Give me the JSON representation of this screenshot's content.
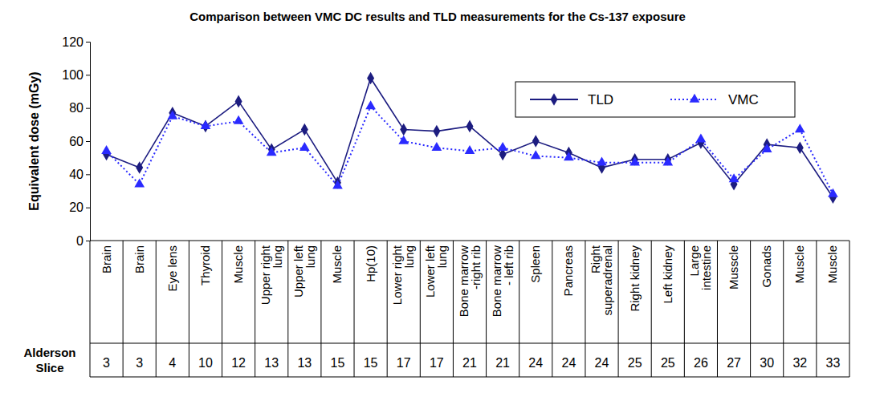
{
  "chart_data": {
    "type": "line",
    "title": "Comparison between VMC DC results and TLD measurements for the Cs-137 exposure",
    "y_label": "Equivalent dose (mGy)",
    "categories": [
      "Brain",
      "Brain",
      "Eye lens",
      "Thyroid",
      "Muscle",
      "Upper right lung",
      "Upper left lung",
      "Muscle",
      "Hp(10)",
      "Lower right lung",
      "Lower left lung",
      "Bone marrow -right rib",
      "Bone marrow - left rib",
      "Spleen",
      "Pancreas",
      "Right superadrenal",
      "Right kidney",
      "Left kidney",
      "Large intestine",
      "Musscle",
      "Gonads",
      "Muscle",
      "Muscle"
    ],
    "series": [
      {
        "name": "TLD",
        "color": "#1c1c80",
        "marker": "diamond",
        "line_style": "solid",
        "values": [
          52,
          44,
          77,
          69,
          84,
          55,
          67,
          35,
          98,
          67,
          66,
          69,
          52,
          60,
          53,
          44,
          49,
          49,
          59,
          34,
          58,
          56,
          26
        ]
      },
      {
        "name": "VMC",
        "color": "#2a2aff",
        "marker": "triangle",
        "line_style": "dotted",
        "values": [
          54,
          34,
          75,
          69,
          72,
          53,
          56,
          33,
          81,
          60,
          56,
          54,
          56,
          51,
          50,
          47,
          47,
          47,
          61,
          37,
          55,
          67,
          28
        ]
      }
    ],
    "table_row": {
      "label": "Alderson Slice",
      "values": [
        3,
        3,
        4,
        10,
        12,
        13,
        13,
        15,
        15,
        17,
        17,
        21,
        21,
        24,
        24,
        24,
        25,
        25,
        26,
        27,
        30,
        32,
        33
      ]
    },
    "ylim": [
      0,
      120
    ],
    "yticks": [
      0,
      20,
      40,
      60,
      80,
      100,
      120
    ],
    "grid": false,
    "legend": "upper right"
  }
}
